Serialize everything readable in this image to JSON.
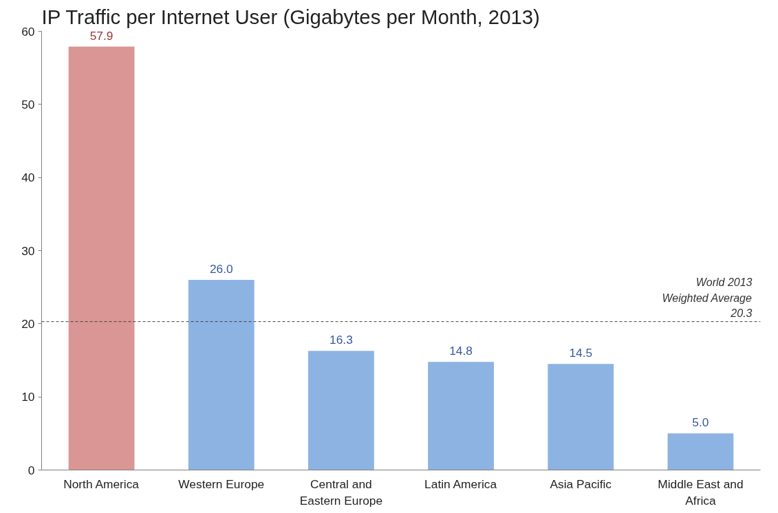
{
  "chart_data": {
    "type": "bar",
    "title": "IP Traffic per Internet User (Gigabytes per Month, 2013)",
    "categories": [
      "North America",
      "Western Europe",
      "Central and Eastern Europe",
      "Latin America",
      "Asia Pacific",
      "Middle East and Africa"
    ],
    "values": [
      57.9,
      26.0,
      16.3,
      14.8,
      14.5,
      5.0
    ],
    "value_labels": [
      "57.9",
      "26.0",
      "16.3",
      "14.8",
      "14.5",
      "5.0"
    ],
    "colors": [
      "#d99694",
      "#8db3e2",
      "#8db3e2",
      "#8db3e2",
      "#8db3e2",
      "#8db3e2"
    ],
    "ylim": [
      0,
      60
    ],
    "yticks": [
      0,
      10,
      20,
      30,
      40,
      50,
      60
    ],
    "ref_lines": [
      {
        "axis": "y",
        "value": 20.3,
        "label": "World 2013\nWeighted Average\n20.3",
        "color": "#404040",
        "line_style": "dashed"
      }
    ],
    "grid": false
  }
}
